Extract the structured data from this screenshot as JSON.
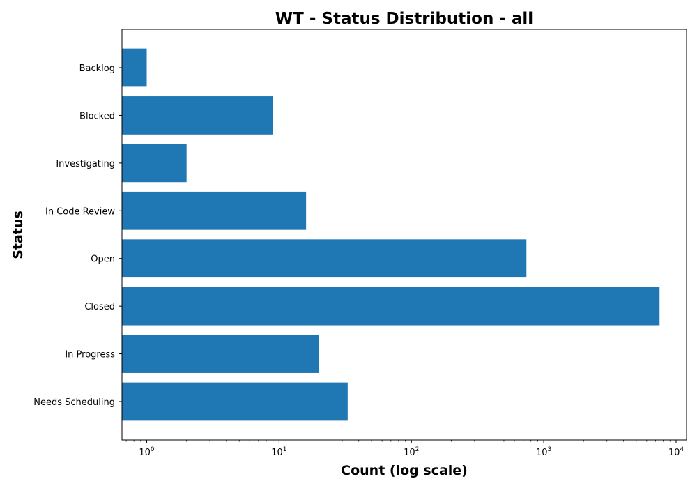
{
  "chart_data": {
    "type": "bar",
    "orientation": "horizontal",
    "title": "WT - Status Distribution - all",
    "xlabel": "Count (log scale)",
    "ylabel": "Status",
    "xscale": "log",
    "xlim": [
      0.65,
      12000
    ],
    "x_ticks": [
      {
        "value": 1,
        "base": "10",
        "exp": "0"
      },
      {
        "value": 10,
        "base": "10",
        "exp": "1"
      },
      {
        "value": 100,
        "base": "10",
        "exp": "2"
      },
      {
        "value": 1000,
        "base": "10",
        "exp": "3"
      },
      {
        "value": 10000,
        "base": "10",
        "exp": "4"
      }
    ],
    "categories": [
      "Backlog",
      "Blocked",
      "Investigating",
      "In Code Review",
      "Open",
      "Closed",
      "In Progress",
      "Needs Scheduling"
    ],
    "values": [
      1,
      9,
      2,
      16,
      740,
      7500,
      20,
      33
    ],
    "bar_color": "#1f77b4",
    "grid": false,
    "legend": "none"
  }
}
